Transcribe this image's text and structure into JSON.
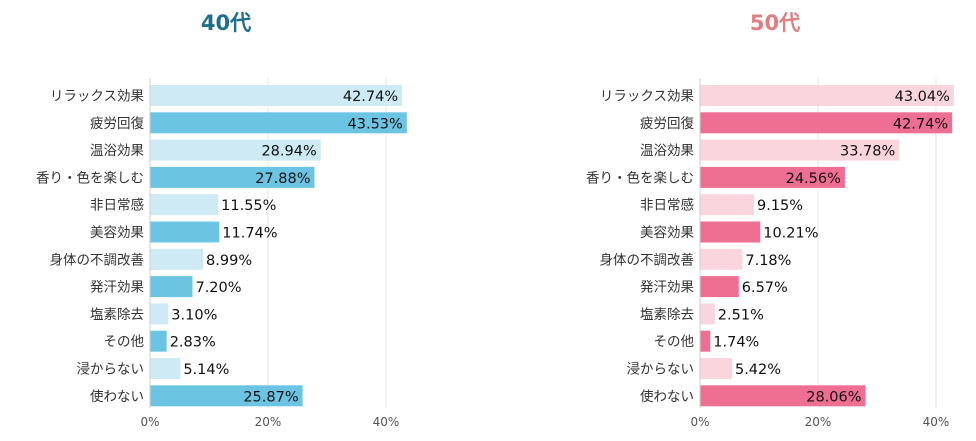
{
  "chart_data": [
    {
      "type": "bar",
      "orientation": "horizontal",
      "title": "40代",
      "categories": [
        "リラックス効果",
        "疲労回復",
        "温浴効果",
        "香り・色を楽しむ",
        "非日常感",
        "美容効果",
        "身体の不調改善",
        "発汗効果",
        "塩素除去",
        "その他",
        "浸からない",
        "使わない"
      ],
      "values": [
        42.74,
        43.53,
        28.94,
        27.88,
        11.55,
        11.74,
        8.99,
        7.2,
        3.1,
        2.83,
        5.14,
        25.87
      ],
      "value_labels": [
        "42.74%",
        "43.53%",
        "28.94%",
        "27.88%",
        "11.55%",
        "11.74%",
        "8.99%",
        "7.20%",
        "3.10%",
        "2.83%",
        "5.14%",
        "25.87%"
      ],
      "xlim": [
        0,
        44
      ],
      "xticks": [
        0,
        20,
        40
      ],
      "xtick_labels": [
        "0%",
        "20%",
        "40%"
      ],
      "grid": true,
      "colors": {
        "title": "#1f6e8c",
        "bar_light": "#cdeaf5",
        "bar_dark": "#6cc4e3"
      }
    },
    {
      "type": "bar",
      "orientation": "horizontal",
      "title": "50代",
      "categories": [
        "リラックス効果",
        "疲労回復",
        "温浴効果",
        "香り・色を楽しむ",
        "非日常感",
        "美容効果",
        "身体の不調改善",
        "発汗効果",
        "塩素除去",
        "その他",
        "浸からない",
        "使わない"
      ],
      "values": [
        43.04,
        42.74,
        33.78,
        24.56,
        9.15,
        10.21,
        7.18,
        6.57,
        2.51,
        1.74,
        5.42,
        28.06
      ],
      "value_labels": [
        "43.04%",
        "42.74%",
        "33.78%",
        "24.56%",
        "9.15%",
        "10.21%",
        "7.18%",
        "6.57%",
        "2.51%",
        "1.74%",
        "5.42%",
        "28.06%"
      ],
      "xlim": [
        0,
        44
      ],
      "xticks": [
        0,
        20,
        40
      ],
      "xtick_labels": [
        "0%",
        "20%",
        "40%"
      ],
      "grid": true,
      "colors": {
        "title": "#e07f82",
        "bar_light": "#fbd5de",
        "bar_dark": "#ef6f93"
      }
    }
  ]
}
